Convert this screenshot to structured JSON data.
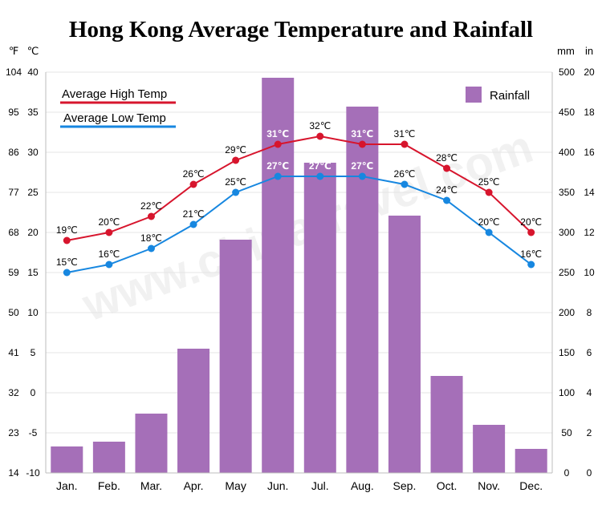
{
  "chart_data": {
    "type": "bar+line",
    "title": "Hong Kong Average Temperature and Rainfall",
    "watermark": "www.chinatravel.com",
    "categories": [
      "Jan.",
      "Feb.",
      "Mar.",
      "Apr.",
      "May",
      "Jun.",
      "Jul.",
      "Aug.",
      "Sep.",
      "Oct.",
      "Nov.",
      "Dec."
    ],
    "rainfall": {
      "name": "Rainfall",
      "color": "#a56fb8",
      "values": [
        33,
        39,
        74,
        155,
        291,
        493,
        387,
        457,
        321,
        121,
        60,
        30
      ]
    },
    "high_temp": {
      "name": "Average High Temp",
      "color": "#d7152d",
      "values": [
        19,
        20,
        22,
        26,
        29,
        31,
        32,
        31,
        31,
        28,
        25,
        20
      ],
      "labels": [
        "19℃",
        "20℃",
        "22℃",
        "26℃",
        "29℃",
        "31℃",
        "32℃",
        "31℃",
        "31℃",
        "28℃",
        "25℃",
        "20℃"
      ]
    },
    "low_temp": {
      "name": "Average Low Temp",
      "color": "#1787e0",
      "values": [
        15,
        16,
        18,
        21,
        25,
        27,
        27,
        27,
        26,
        24,
        20,
        16
      ],
      "labels": [
        "15℃",
        "16℃",
        "18℃",
        "21℃",
        "25℃",
        "27℃",
        "27℃",
        "27℃",
        "26℃",
        "24℃",
        "20℃",
        "16℃"
      ]
    },
    "axes": {
      "celsius": {
        "unit": "℃",
        "ticks": [
          "-10",
          "-5",
          "0",
          "5",
          "10",
          "15",
          "20",
          "25",
          "30",
          "35",
          "40"
        ],
        "range": [
          -10,
          40
        ]
      },
      "fahrenheit": {
        "unit": "℉",
        "ticks": [
          "14",
          "23",
          "32",
          "41",
          "50",
          "59",
          "68",
          "77",
          "86",
          "95",
          "104"
        ]
      },
      "mm": {
        "unit": "mm",
        "ticks": [
          "0",
          "50",
          "100",
          "150",
          "200",
          "250",
          "300",
          "350",
          "400",
          "450",
          "500"
        ],
        "range": [
          0,
          500
        ]
      },
      "inch": {
        "unit": "in",
        "ticks": [
          "0",
          "2",
          "4",
          "6",
          "8",
          "10",
          "12",
          "14",
          "16",
          "18",
          "20"
        ]
      }
    },
    "grid": true,
    "legend_placement": "top-left (lines), top-right (bars)"
  }
}
